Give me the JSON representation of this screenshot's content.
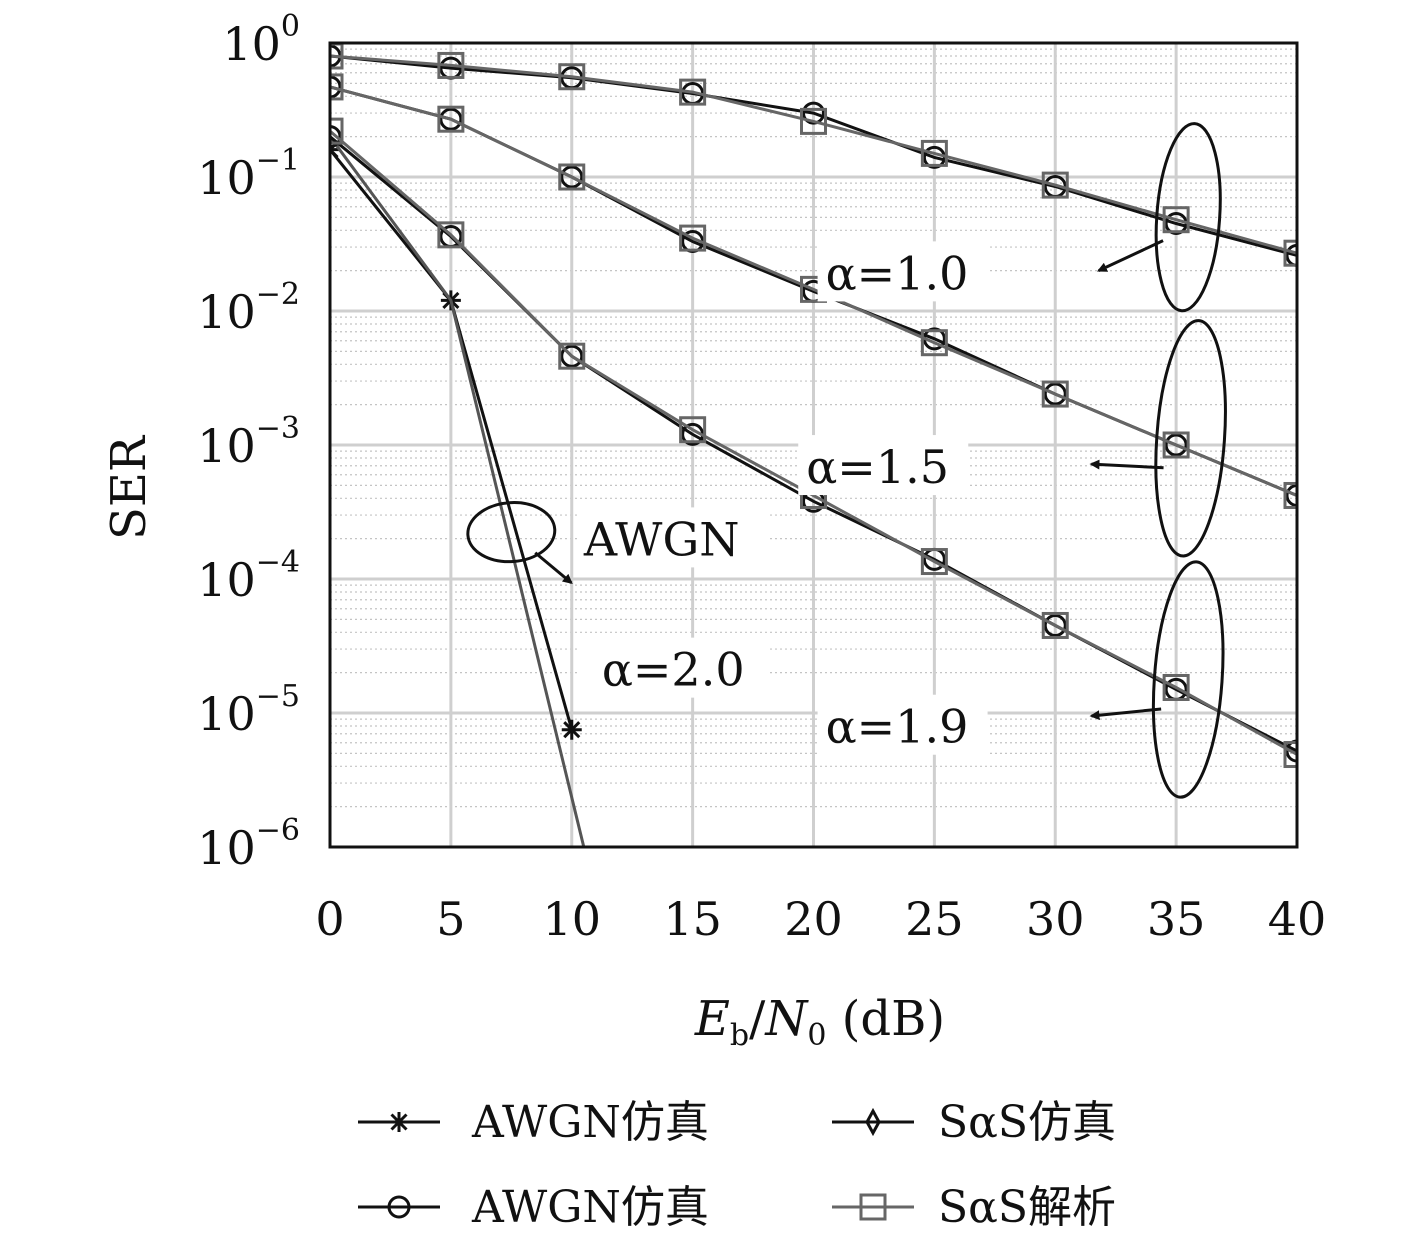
{
  "chart_data": {
    "type": "line",
    "ylabel": "SER",
    "xlabel": {
      "main": "E",
      "sub1": "b",
      "slash": "/",
      "main2": "N",
      "sub2": "0",
      "unit": " (dB)"
    },
    "x_ticks": [
      0,
      5,
      10,
      15,
      20,
      25,
      30,
      35,
      40
    ],
    "y_ticks": [
      {
        "value": 1,
        "base": "10",
        "exp": "0"
      },
      {
        "value": 0.1,
        "base": "10",
        "exp": "−1"
      },
      {
        "value": 0.01,
        "base": "10",
        "exp": "−2"
      },
      {
        "value": 0.001,
        "base": "10",
        "exp": "−3"
      },
      {
        "value": 0.0001,
        "base": "10",
        "exp": "−4"
      },
      {
        "value": 1e-05,
        "base": "10",
        "exp": "−5"
      },
      {
        "value": 1e-06,
        "base": "10",
        "exp": "−6"
      }
    ],
    "xlim": [
      0,
      40
    ],
    "ylim": [
      1e-06,
      1
    ],
    "yscale": "log",
    "grid": true,
    "series": [
      {
        "marker": "star",
        "color": "#111111",
        "x": [
          0,
          5,
          10
        ],
        "y": [
          0.16,
          0.012,
          7.5e-06
        ]
      },
      {
        "marker": "line",
        "color": "#555555",
        "x": [
          0,
          5,
          10.5
        ],
        "y": [
          0.2,
          0.012,
          1e-06
        ]
      },
      {
        "marker": "circle",
        "color": "#111111",
        "x": [
          0,
          5,
          10,
          15,
          20,
          25,
          30,
          35,
          40
        ],
        "y": [
          0.8,
          0.65,
          0.55,
          0.42,
          0.3,
          0.14,
          0.085,
          0.045,
          0.026
        ]
      },
      {
        "marker": "square",
        "color": "#666666",
        "x": [
          0,
          5,
          10,
          15,
          20,
          25,
          30,
          35,
          40
        ],
        "y": [
          0.8,
          0.68,
          0.56,
          0.43,
          0.26,
          0.15,
          0.087,
          0.048,
          0.027
        ]
      },
      {
        "marker": "circle",
        "color": "#111111",
        "x": [
          0,
          5,
          10,
          15,
          20,
          25,
          30,
          35,
          40
        ],
        "y": [
          0.47,
          0.27,
          0.1,
          0.033,
          0.014,
          0.0062,
          0.0024,
          0.001,
          0.00042
        ]
      },
      {
        "marker": "square",
        "color": "#666666",
        "x": [
          0,
          5,
          10,
          15,
          20,
          25,
          30,
          35,
          40
        ],
        "y": [
          0.47,
          0.27,
          0.1,
          0.035,
          0.0145,
          0.0058,
          0.0024,
          0.001,
          0.00042
        ]
      },
      {
        "marker": "circle",
        "color": "#111111",
        "x": [
          0,
          5,
          10,
          15,
          20,
          25,
          30,
          35,
          40
        ],
        "y": [
          0.2,
          0.036,
          0.0046,
          0.0012,
          0.00038,
          0.00014,
          4.5e-05,
          1.5e-05,
          5.2e-06
        ]
      },
      {
        "marker": "square",
        "color": "#666666",
        "x": [
          0,
          5,
          10,
          15,
          20,
          25,
          30,
          35,
          40
        ],
        "y": [
          0.22,
          0.037,
          0.0046,
          0.0013,
          0.00042,
          0.000135,
          4.5e-05,
          1.55e-05,
          4.9e-06
        ]
      }
    ],
    "annotations": [
      {
        "label": "α=1.0",
        "text_x": 20.5,
        "text_y": 0.0145,
        "arrow_to": [
          31.8,
          0.02
        ],
        "ellipse": {
          "cx": 35.5,
          "cy_exp": -1.3,
          "rx": 1.3,
          "ry_dec": 0.7
        }
      },
      {
        "label": "α=1.5",
        "text_x": 19.7,
        "text_y": 0.00052,
        "arrow_to": [
          31.5,
          0.00072
        ],
        "ellipse": {
          "cx": 35.6,
          "cy_exp": -2.95,
          "rx": 1.4,
          "ry_dec": 0.88
        }
      },
      {
        "label": "α=1.9",
        "text_x": 20.5,
        "text_y": 6e-06,
        "arrow_to": [
          31.5,
          9.5e-06
        ],
        "ellipse": {
          "cx": 35.5,
          "cy_exp": -4.75,
          "rx": 1.4,
          "ry_dec": 0.88
        }
      },
      {
        "label": "AWGN",
        "label2": "α=2.0",
        "text_x": 10.5,
        "text_y": 0.00015,
        "text2_y": 1.6e-05,
        "ellipse": {
          "cx": 7.5,
          "cy_exp": -3.65,
          "rx": 1.8,
          "ry_dec": 0.22
        }
      }
    ],
    "legend": {
      "placement": "bottom",
      "entries": [
        {
          "label": "AWGN仿真",
          "marker": "star",
          "color": "#111111"
        },
        {
          "label": "SαS仿真",
          "marker": "diamond",
          "color": "#111111"
        },
        {
          "label": "AWGN仿真",
          "marker": "circle",
          "color": "#111111"
        },
        {
          "label": "SαS解析",
          "marker": "square",
          "color": "#666666"
        }
      ]
    }
  }
}
